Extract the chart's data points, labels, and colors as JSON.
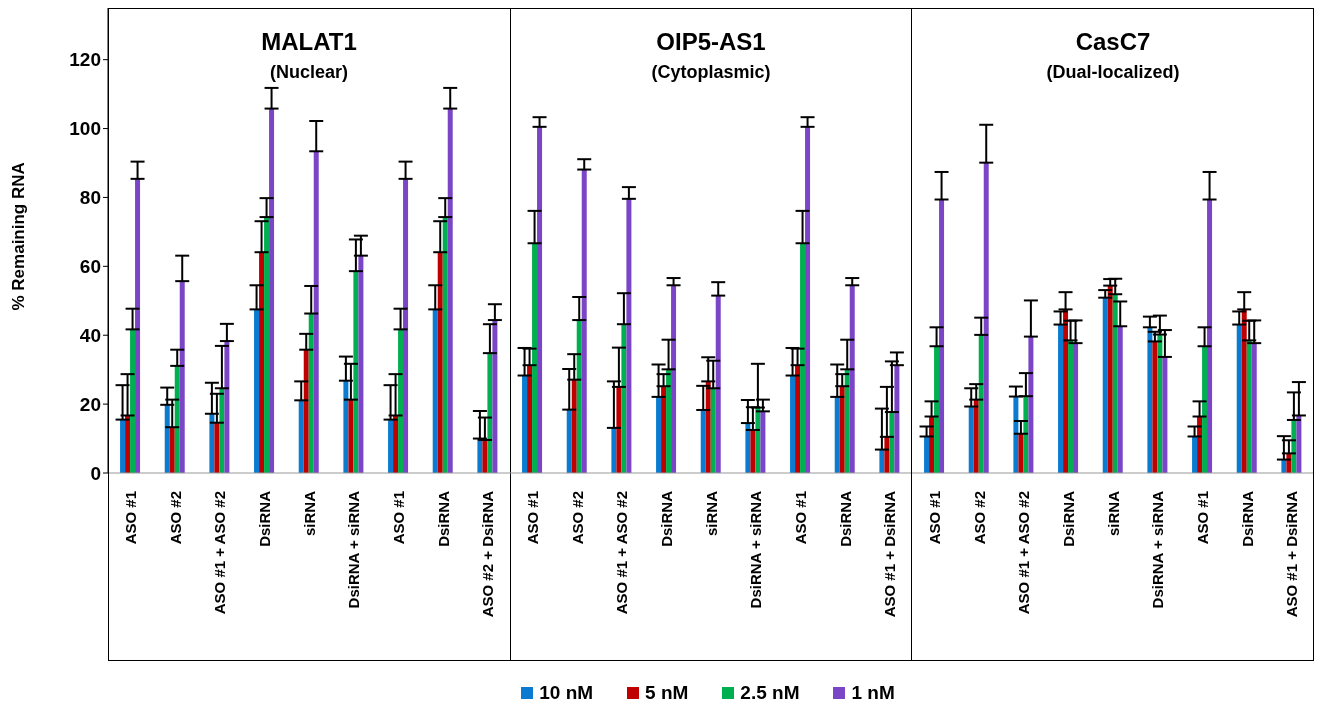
{
  "chart_data": [
    {
      "type": "bar",
      "title": "MALAT1",
      "subtitle": "(Nuclear)",
      "ylabel": "% Remaining RNA",
      "legend": "bottom",
      "ylim": [
        0,
        135
      ],
      "yticks": [
        0,
        20,
        40,
        60,
        80,
        100,
        120
      ],
      "categories": [
        "ASO #1",
        "ASO #2",
        "ASO #1 + ASO #2",
        "DsiRNA",
        "siRNA",
        "DsiRNA + siRNA",
        "ASO #1",
        "DsiRNA",
        "ASO #2 + DsiRNA"
      ],
      "series": [
        {
          "name": "10 nM",
          "color": "#0a7bd0",
          "values": [
            15.5,
            19.8,
            17.2,
            47.5,
            21.1,
            26.8,
            15.5,
            47.5,
            10
          ],
          "errors": [
            [
              15.5,
              25.5
            ],
            [
              19.8,
              24.8
            ],
            [
              17.2,
              26.2
            ],
            [
              47.5,
              54.5
            ],
            [
              21.1,
              26.6
            ],
            [
              26.8,
              33.8
            ],
            [
              15.5,
              25.5
            ],
            [
              47.5,
              54.5
            ],
            [
              10,
              18
            ]
          ]
        },
        {
          "name": "5 nM",
          "color": "#c00000",
          "values": [
            16.7,
            13.3,
            14.6,
            64.1,
            35.8,
            21.3,
            16.7,
            64.1,
            9.6
          ],
          "errors": [
            [
              16.7,
              28.7
            ],
            [
              13.3,
              21.3
            ],
            [
              14.6,
              23
            ],
            [
              64.1,
              73.1
            ],
            [
              35.8,
              40.4
            ],
            [
              21.3,
              31.7
            ],
            [
              16.7,
              28.7
            ],
            [
              64.1,
              73.1
            ],
            [
              9.6,
              16.1
            ]
          ]
        },
        {
          "name": "2.5 nM",
          "color": "#00b050",
          "values": [
            41.7,
            31.1,
            24.6,
            74.3,
            46.3,
            58.6,
            41.7,
            74.3,
            34.8
          ],
          "errors": [
            [
              41.7,
              47.7
            ],
            [
              31.1,
              35.8
            ],
            [
              24.6,
              36.9
            ],
            [
              74.3,
              79.8
            ],
            [
              46.3,
              54.3
            ],
            [
              58.6,
              67.8
            ],
            [
              41.7,
              47.7
            ],
            [
              74.3,
              79.8
            ],
            [
              34.8,
              43.2
            ]
          ]
        },
        {
          "name": "1 nM",
          "color": "#7b45c7",
          "values": [
            85.4,
            55.7,
            38.3,
            105.8,
            93.4,
            63.1,
            85.4,
            105.8,
            44.4
          ],
          "errors": [
            [
              85.4,
              90.4
            ],
            [
              55.7,
              63.1
            ],
            [
              38.3,
              43.3
            ],
            [
              105.8,
              111.8
            ],
            [
              93.4,
              102.2
            ],
            [
              63.1,
              68.9
            ],
            [
              85.4,
              90.4
            ],
            [
              105.8,
              111.8
            ],
            [
              44.4,
              49
            ]
          ]
        }
      ]
    },
    {
      "type": "bar",
      "title": "OIP5-AS1",
      "subtitle": "(Cytoplasmic)",
      "tick_labels": "x",
      "ylim": [
        0,
        135
      ],
      "categories": [
        "ASO #1",
        "ASO #2",
        "ASO #1 + ASO #2",
        "DsiRNA",
        "siRNA",
        "DsiRNA + siRNA",
        "ASO #1",
        "DsiRNA",
        "ASO #1 + DsiRNA"
      ],
      "series": [
        {
          "color": "#0a7bd0",
          "values": [
            28.3,
            18.4,
            13.1,
            22.1,
            18.3,
            14.5,
            28.3,
            22.1,
            6.8
          ],
          "errors": [
            [
              28.3,
              36.3
            ],
            [
              18.4,
              30.2
            ],
            [
              13.1,
              26.6
            ],
            [
              22.1,
              31.5
            ],
            [
              18.3,
              25.3
            ],
            [
              14.5,
              21.2
            ],
            [
              28.3,
              36.3
            ],
            [
              22.1,
              31.5
            ],
            [
              6.8,
              18.7
            ]
          ]
        },
        {
          "color": "#c00000",
          "values": [
            31.3,
            27.1,
            25,
            25.2,
            26.6,
            12.5,
            31.3,
            25.2,
            10.5
          ],
          "errors": [
            [
              31.3,
              36.1
            ],
            [
              27.1,
              34.5
            ],
            [
              25,
              36.4
            ],
            [
              25.2,
              28.7
            ],
            [
              26.6,
              33.6
            ],
            [
              12.5,
              19.1
            ],
            [
              31.3,
              36.1
            ],
            [
              25.2,
              28.7
            ],
            [
              10.5,
              25
            ]
          ]
        },
        {
          "color": "#00b050",
          "values": [
            66.7,
            44.4,
            43.2,
            30.1,
            24.6,
            19,
            66.7,
            30.1,
            17.7
          ],
          "errors": [
            [
              66.7,
              76.1
            ],
            [
              44.4,
              51.1
            ],
            [
              43.2,
              52.2
            ],
            [
              30.1,
              38.7
            ],
            [
              24.6,
              32.6
            ],
            [
              19,
              31.7
            ],
            [
              66.7,
              76.1
            ],
            [
              30.1,
              38.7
            ],
            [
              17.7,
              32.4
            ]
          ]
        },
        {
          "color": "#7b45c7",
          "values": [
            100.5,
            88.1,
            79.6,
            54.5,
            51.5,
            17.9,
            100.5,
            54.5,
            31.3
          ],
          "errors": [
            [
              100.5,
              103.3
            ],
            [
              88.1,
              91.1
            ],
            [
              79.6,
              83
            ],
            [
              54.5,
              56.6
            ],
            [
              51.5,
              55.4
            ],
            [
              17.9,
              21.3
            ],
            [
              100.5,
              103.3
            ],
            [
              54.5,
              56.6
            ],
            [
              31.3,
              35
            ]
          ]
        }
      ]
    },
    {
      "type": "bar",
      "title": "CasC7",
      "subtitle": "(Dual-localized)",
      "tick_labels": "x",
      "ylim": [
        0,
        135
      ],
      "categories": [
        "ASO #1",
        "ASO #2",
        "ASO #1 + ASO #2",
        "DsiRNA",
        "siRNA",
        "DsiRNA + siRNA",
        "ASO #1",
        "DsiRNA",
        "ASO #1 + DsiRNA"
      ],
      "series": [
        {
          "color": "#0a7bd0",
          "values": [
            10.6,
            19.3,
            22.2,
            43.1,
            50.9,
            42.3,
            10.6,
            43.1,
            3.9
          ],
          "errors": [
            [
              10.6,
              13.5
            ],
            [
              19.3,
              24.6
            ],
            [
              22.2,
              25.1
            ],
            [
              43.1,
              46.9
            ],
            [
              50.9,
              53.1
            ],
            [
              42.3,
              45.4
            ],
            [
              10.6,
              13.5
            ],
            [
              43.1,
              46.9
            ],
            [
              3.9,
              10.7
            ]
          ]
        },
        {
          "color": "#c00000",
          "values": [
            16.4,
            21.3,
            11.4,
            47.5,
            54.4,
            38.2,
            16.4,
            47.5,
            5.7
          ],
          "errors": [
            [
              16.4,
              20.8
            ],
            [
              21.3,
              25.8
            ],
            [
              11.4,
              15.1
            ],
            [
              47.5,
              52.5
            ],
            [
              54.4,
              56.3
            ],
            [
              38.2,
              41
            ],
            [
              16.4,
              20.8
            ],
            [
              47.5,
              52.5
            ],
            [
              5.7,
              9.5
            ]
          ]
        },
        {
          "color": "#00b050",
          "values": [
            36.8,
            40.1,
            22.3,
            38.5,
            51.9,
            40.2,
            36.8,
            38.5,
            15.4
          ],
          "errors": [
            [
              36.8,
              42.3
            ],
            [
              40.1,
              45.1
            ],
            [
              22.3,
              29
            ],
            [
              38.5,
              44.2
            ],
            [
              51.9,
              56.4
            ],
            [
              40.2,
              45.7
            ],
            [
              36.8,
              42.3
            ],
            [
              38.5,
              44.2
            ],
            [
              15.4,
              23.4
            ]
          ]
        },
        {
          "color": "#7b45c7",
          "values": [
            79.4,
            90.1,
            39.6,
            37.7,
            42.6,
            33.7,
            79.4,
            37.7,
            16.7
          ],
          "errors": [
            [
              79.4,
              87.4
            ],
            [
              90.1,
              101.1
            ],
            [
              39.6,
              50.1
            ],
            [
              37.7,
              44.3
            ],
            [
              42.6,
              49.8
            ],
            [
              33.7,
              41.5
            ],
            [
              79.4,
              87.4
            ],
            [
              37.7,
              44.3
            ],
            [
              16.7,
              26.4
            ]
          ]
        }
      ]
    }
  ]
}
